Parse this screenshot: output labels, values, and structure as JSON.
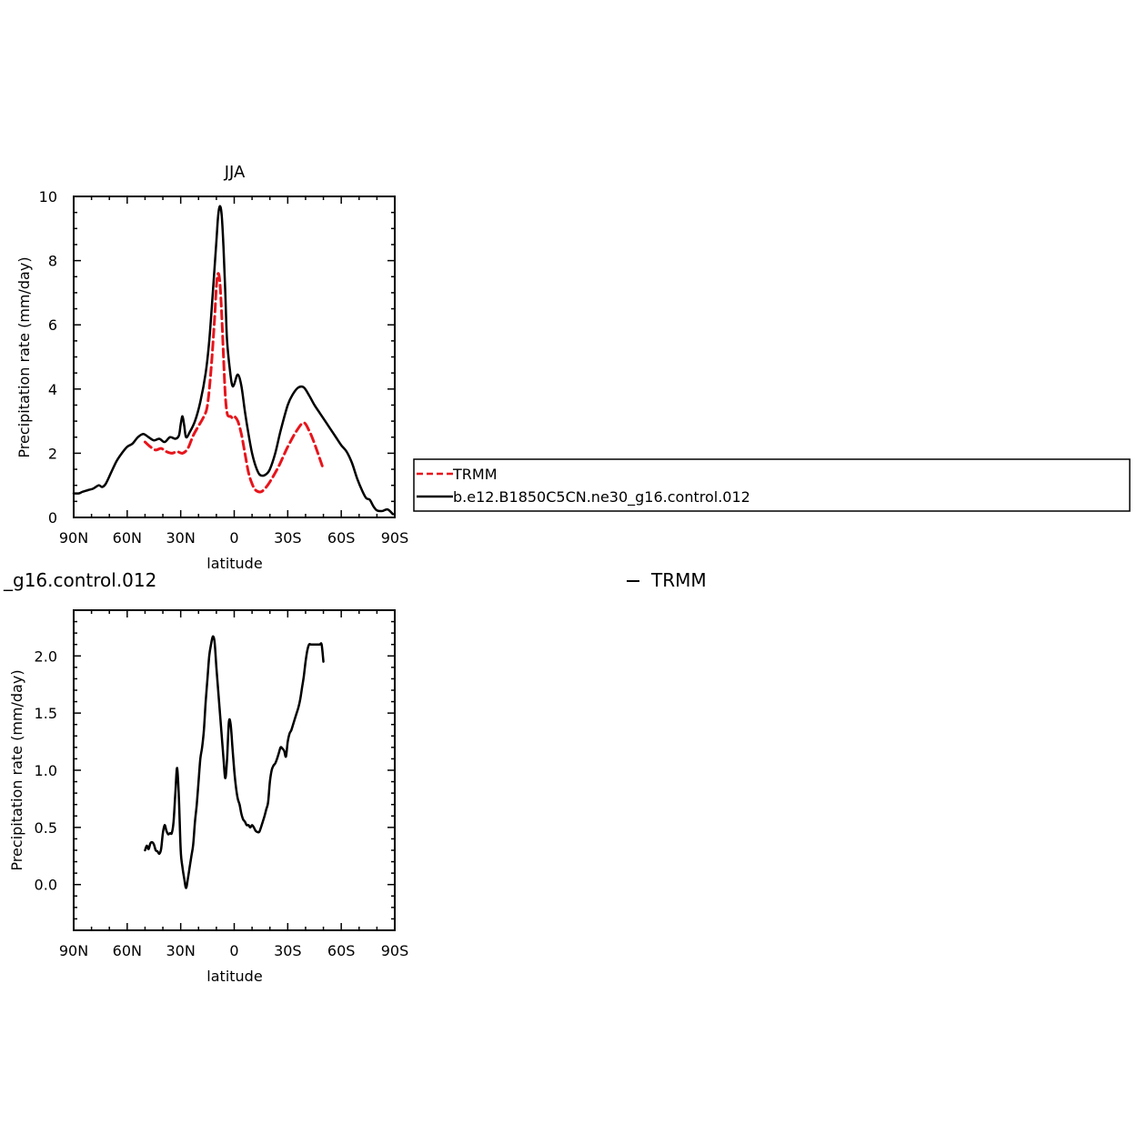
{
  "chart_data": [
    {
      "type": "line",
      "title": "JJA",
      "xlabel": "latitude",
      "ylabel": "Precipitation rate (mm/day)",
      "xlim": [
        90,
        -90
      ],
      "ylim": [
        0,
        10
      ],
      "x_ticks": [
        90,
        60,
        30,
        0,
        -30,
        -60,
        -90
      ],
      "x_tick_labels": [
        "90N",
        "60N",
        "30N",
        "0",
        "30S",
        "60S",
        "90S"
      ],
      "y_ticks": [
        0,
        2,
        4,
        6,
        8,
        10
      ],
      "y_tick_labels": [
        "0",
        "2",
        "4",
        "6",
        "8",
        "10"
      ],
      "legend": {
        "placement": "right",
        "entries": [
          "TRMM",
          "b.e12.B1850C5CN.ne30_g16.control.012"
        ]
      },
      "series": [
        {
          "name": "TRMM",
          "color": "#e8141b",
          "dash": "dashed",
          "x": [
            50,
            47,
            44,
            41,
            38,
            35,
            32,
            29,
            26,
            23,
            20,
            17,
            15,
            13,
            11,
            10,
            9,
            8,
            7,
            6,
            5,
            4,
            3,
            2,
            1,
            0,
            -2,
            -4,
            -6,
            -8,
            -10,
            -12,
            -15,
            -18,
            -21,
            -25,
            -30,
            -35,
            -39,
            -42,
            -45,
            -50
          ],
          "y": [
            2.35,
            2.2,
            2.1,
            2.15,
            2.05,
            2.0,
            2.05,
            2.0,
            2.15,
            2.55,
            2.85,
            3.15,
            3.5,
            4.6,
            6.2,
            7.2,
            7.6,
            7.3,
            6.3,
            5.0,
            3.8,
            3.25,
            3.15,
            3.15,
            3.1,
            3.15,
            3.0,
            2.6,
            2.0,
            1.4,
            1.05,
            0.85,
            0.8,
            0.95,
            1.2,
            1.6,
            2.2,
            2.7,
            2.95,
            2.7,
            2.3,
            1.5
          ]
        },
        {
          "name": "b.e12.B1850C5CN.ne30_g16.control.012",
          "color": "#000000",
          "dash": "solid",
          "x": [
            90,
            87,
            85,
            82,
            79,
            76,
            74,
            72,
            69,
            66,
            63,
            60,
            57,
            54,
            51,
            48,
            45,
            42,
            39,
            36,
            33,
            31,
            30,
            29,
            28,
            27,
            25,
            22,
            19,
            16,
            14,
            12,
            10,
            9,
            8,
            7,
            6,
            5,
            4,
            2,
            1,
            0,
            -2,
            -4,
            -6,
            -8,
            -10,
            -12,
            -14,
            -16,
            -18,
            -20,
            -23,
            -26,
            -30,
            -33,
            -36,
            -39,
            -42,
            -45,
            -48,
            -51,
            -54,
            -57,
            -60,
            -63,
            -66,
            -69,
            -72,
            -74,
            -76,
            -78,
            -80,
            -83,
            -86,
            -89
          ],
          "y": [
            0.75,
            0.75,
            0.8,
            0.85,
            0.9,
            1.0,
            0.95,
            1.05,
            1.4,
            1.75,
            2.0,
            2.2,
            2.3,
            2.5,
            2.6,
            2.5,
            2.4,
            2.45,
            2.35,
            2.5,
            2.45,
            2.55,
            2.9,
            3.15,
            2.85,
            2.5,
            2.65,
            3.0,
            3.6,
            4.5,
            5.5,
            7.0,
            8.6,
            9.4,
            9.7,
            9.4,
            8.4,
            7.0,
            5.5,
            4.4,
            4.1,
            4.15,
            4.45,
            4.1,
            3.3,
            2.6,
            2.0,
            1.6,
            1.35,
            1.3,
            1.35,
            1.5,
            2.0,
            2.7,
            3.5,
            3.85,
            4.05,
            4.05,
            3.8,
            3.5,
            3.25,
            3.0,
            2.75,
            2.5,
            2.25,
            2.05,
            1.7,
            1.2,
            0.8,
            0.6,
            0.55,
            0.35,
            0.22,
            0.2,
            0.25,
            0.1
          ]
        }
      ]
    },
    {
      "type": "line",
      "title": "",
      "xlabel": "latitude",
      "ylabel": "Precipitation rate (mm/day)",
      "xlim": [
        90,
        -90
      ],
      "ylim": [
        -0.4,
        2.4
      ],
      "x_ticks": [
        90,
        60,
        30,
        0,
        -30,
        -60,
        -90
      ],
      "x_tick_labels": [
        "90N",
        "60N",
        "30N",
        "0",
        "30S",
        "60S",
        "90S"
      ],
      "y_ticks": [
        0.0,
        0.5,
        1.0,
        1.5,
        2.0
      ],
      "y_tick_labels": [
        "0.0",
        "0.5",
        "1.0",
        "1.5",
        "2.0"
      ],
      "series": [
        {
          "color": "#000000",
          "dash": "solid",
          "x": [
            50,
            49,
            48,
            47,
            46,
            45,
            44,
            43,
            42,
            41,
            40,
            39,
            38,
            37,
            36,
            35,
            34,
            33,
            32,
            31,
            30,
            29,
            28,
            27,
            26,
            25,
            24,
            23,
            22,
            21,
            20,
            19,
            18,
            17,
            16,
            15,
            14,
            13,
            12,
            11,
            10,
            9,
            8,
            7,
            6,
            5,
            4,
            3,
            2,
            1,
            0,
            -1,
            -2,
            -3,
            -4,
            -5,
            -6,
            -7,
            -8,
            -9,
            -10,
            -11,
            -12,
            -13,
            -14,
            -15,
            -16,
            -17,
            -18,
            -19,
            -20,
            -21,
            -22,
            -23,
            -24,
            -25,
            -26,
            -27,
            -28,
            -29,
            -30,
            -31,
            -32,
            -33,
            -34,
            -35,
            -36,
            -37,
            -38,
            -39,
            -40,
            -41,
            -42,
            -43,
            -44,
            -45,
            -46,
            -47,
            -48,
            -49,
            -50
          ],
          "y": [
            0.3,
            0.34,
            0.31,
            0.36,
            0.37,
            0.35,
            0.3,
            0.29,
            0.27,
            0.31,
            0.45,
            0.52,
            0.47,
            0.44,
            0.45,
            0.45,
            0.55,
            0.8,
            1.02,
            0.75,
            0.3,
            0.15,
            0.05,
            -0.03,
            0.05,
            0.15,
            0.25,
            0.35,
            0.55,
            0.7,
            0.9,
            1.1,
            1.2,
            1.35,
            1.6,
            1.8,
            2.0,
            2.1,
            2.17,
            2.12,
            1.9,
            1.7,
            1.5,
            1.3,
            1.1,
            0.93,
            1.1,
            1.42,
            1.4,
            1.2,
            1.0,
            0.85,
            0.75,
            0.7,
            0.62,
            0.57,
            0.55,
            0.52,
            0.52,
            0.5,
            0.52,
            0.5,
            0.47,
            0.46,
            0.46,
            0.5,
            0.55,
            0.6,
            0.66,
            0.72,
            0.9,
            1.0,
            1.04,
            1.06,
            1.1,
            1.15,
            1.2,
            1.19,
            1.17,
            1.12,
            1.25,
            1.32,
            1.35,
            1.4,
            1.45,
            1.5,
            1.55,
            1.62,
            1.72,
            1.82,
            1.95,
            2.05,
            2.1,
            2.1,
            2.1,
            2.1,
            2.1,
            2.1,
            2.1,
            2.1,
            1.95
          ]
        }
      ]
    }
  ],
  "fragments": {
    "clipped_title": "_g16.control.012",
    "clipped_legend": "TRMM"
  }
}
